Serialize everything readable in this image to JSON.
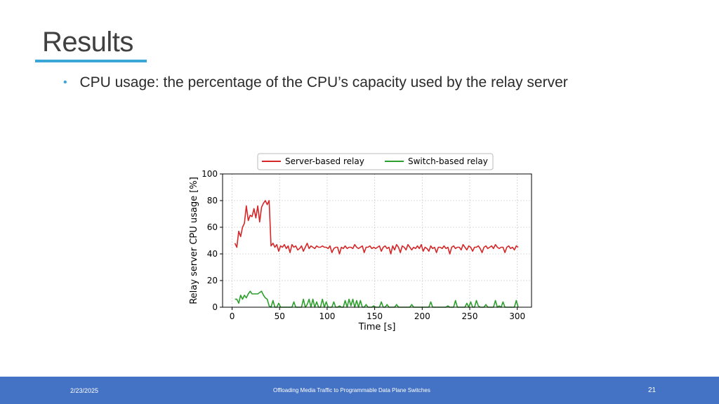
{
  "slide": {
    "title": "Results",
    "bullet": "CPU usage: the percentage of the CPU’s capacity used by the relay server",
    "accent_color": "#3aa6d8"
  },
  "footer": {
    "date": "2/23/2025",
    "center": "Offloading Media Traffic to Programmable Data Plane Switches",
    "page": "21",
    "background_color": "#4472c4"
  },
  "chart_data": {
    "type": "line",
    "title": "",
    "xlabel": "Time [s]",
    "ylabel": "Relay server CPU usage [%]",
    "xlim": [
      -10,
      315
    ],
    "ylim": [
      0,
      100
    ],
    "x_ticks": [
      0,
      50,
      100,
      150,
      200,
      250,
      300
    ],
    "y_ticks": [
      0,
      20,
      40,
      60,
      80,
      100
    ],
    "grid": true,
    "legend": "top",
    "series": [
      {
        "name": "Server-based relay",
        "color": "#d62728",
        "points": [
          [
            3,
            48
          ],
          [
            5,
            45
          ],
          [
            7,
            57
          ],
          [
            9,
            53
          ],
          [
            11,
            60
          ],
          [
            13,
            63
          ],
          [
            15,
            76
          ],
          [
            17,
            65
          ],
          [
            19,
            69
          ],
          [
            21,
            68
          ],
          [
            23,
            74
          ],
          [
            25,
            67
          ],
          [
            27,
            76
          ],
          [
            29,
            64
          ],
          [
            31,
            75
          ],
          [
            33,
            78
          ],
          [
            35,
            80
          ],
          [
            37,
            77
          ],
          [
            39,
            80
          ],
          [
            41,
            46
          ],
          [
            43,
            48
          ],
          [
            45,
            45
          ],
          [
            47,
            47
          ],
          [
            49,
            42
          ],
          [
            51,
            46
          ],
          [
            53,
            45
          ],
          [
            55,
            47
          ],
          [
            57,
            44
          ],
          [
            59,
            46
          ],
          [
            61,
            41
          ],
          [
            63,
            47
          ],
          [
            65,
            45
          ],
          [
            67,
            46
          ],
          [
            69,
            43
          ],
          [
            71,
            44
          ],
          [
            73,
            46
          ],
          [
            75,
            42
          ],
          [
            77,
            45
          ],
          [
            79,
            48
          ],
          [
            81,
            44
          ],
          [
            83,
            46
          ],
          [
            85,
            45
          ],
          [
            87,
            44
          ],
          [
            89,
            46
          ],
          [
            91,
            45
          ],
          [
            93,
            45
          ],
          [
            95,
            46
          ],
          [
            97,
            45
          ],
          [
            99,
            45
          ],
          [
            101,
            44
          ],
          [
            103,
            46
          ],
          [
            105,
            41
          ],
          [
            107,
            44
          ],
          [
            109,
            45
          ],
          [
            111,
            45
          ],
          [
            113,
            40
          ],
          [
            115,
            45
          ],
          [
            117,
            44
          ],
          [
            119,
            46
          ],
          [
            121,
            44
          ],
          [
            123,
            45
          ],
          [
            125,
            45
          ],
          [
            127,
            44
          ],
          [
            129,
            47
          ],
          [
            131,
            45
          ],
          [
            133,
            44
          ],
          [
            135,
            45
          ],
          [
            137,
            46
          ],
          [
            139,
            41
          ],
          [
            141,
            45
          ],
          [
            143,
            45
          ],
          [
            145,
            46
          ],
          [
            147,
            44
          ],
          [
            149,
            45
          ],
          [
            151,
            44
          ],
          [
            153,
            45
          ],
          [
            155,
            46
          ],
          [
            157,
            42
          ],
          [
            159,
            45
          ],
          [
            161,
            46
          ],
          [
            163,
            44
          ],
          [
            165,
            45
          ],
          [
            167,
            40
          ],
          [
            169,
            46
          ],
          [
            171,
            43
          ],
          [
            173,
            47
          ],
          [
            175,
            45
          ],
          [
            177,
            41
          ],
          [
            179,
            46
          ],
          [
            181,
            45
          ],
          [
            183,
            43
          ],
          [
            185,
            47
          ],
          [
            187,
            45
          ],
          [
            189,
            43
          ],
          [
            191,
            45
          ],
          [
            193,
            44
          ],
          [
            195,
            46
          ],
          [
            197,
            44
          ],
          [
            199,
            47
          ],
          [
            201,
            42
          ],
          [
            203,
            45
          ],
          [
            205,
            44
          ],
          [
            207,
            42
          ],
          [
            209,
            46
          ],
          [
            211,
            44
          ],
          [
            213,
            45
          ],
          [
            215,
            41
          ],
          [
            217,
            45
          ],
          [
            219,
            45
          ],
          [
            221,
            44
          ],
          [
            223,
            46
          ],
          [
            225,
            44
          ],
          [
            227,
            45
          ],
          [
            229,
            40
          ],
          [
            231,
            45
          ],
          [
            233,
            46
          ],
          [
            235,
            44
          ],
          [
            237,
            45
          ],
          [
            239,
            45
          ],
          [
            241,
            43
          ],
          [
            243,
            47
          ],
          [
            245,
            45
          ],
          [
            247,
            43
          ],
          [
            249,
            46
          ],
          [
            251,
            45
          ],
          [
            253,
            42
          ],
          [
            255,
            45
          ],
          [
            257,
            45
          ],
          [
            259,
            46
          ],
          [
            261,
            44
          ],
          [
            263,
            41
          ],
          [
            265,
            45
          ],
          [
            267,
            46
          ],
          [
            269,
            44
          ],
          [
            271,
            45
          ],
          [
            273,
            46
          ],
          [
            275,
            44
          ],
          [
            277,
            47
          ],
          [
            279,
            45
          ],
          [
            281,
            44
          ],
          [
            283,
            45
          ],
          [
            285,
            45
          ],
          [
            287,
            41
          ],
          [
            289,
            45
          ],
          [
            291,
            46
          ],
          [
            293,
            44
          ],
          [
            295,
            45
          ],
          [
            297,
            43
          ],
          [
            299,
            46
          ],
          [
            301,
            45
          ]
        ]
      },
      {
        "name": "Switch-based relay",
        "color": "#2ca02c",
        "points": [
          [
            3,
            6
          ],
          [
            5,
            6
          ],
          [
            7,
            3
          ],
          [
            9,
            9
          ],
          [
            11,
            6
          ],
          [
            13,
            9
          ],
          [
            15,
            7
          ],
          [
            17,
            10
          ],
          [
            19,
            12
          ],
          [
            21,
            10
          ],
          [
            23,
            10
          ],
          [
            25,
            10
          ],
          [
            27,
            10
          ],
          [
            29,
            11
          ],
          [
            31,
            12
          ],
          [
            33,
            9
          ],
          [
            35,
            7
          ],
          [
            37,
            6
          ],
          [
            39,
            1
          ],
          [
            41,
            0
          ],
          [
            43,
            5
          ],
          [
            45,
            0
          ],
          [
            47,
            0
          ],
          [
            49,
            3
          ],
          [
            51,
            0
          ],
          [
            53,
            0
          ],
          [
            55,
            0
          ],
          [
            57,
            0
          ],
          [
            59,
            0
          ],
          [
            61,
            0
          ],
          [
            63,
            0
          ],
          [
            65,
            4
          ],
          [
            67,
            0
          ],
          [
            69,
            0
          ],
          [
            71,
            0
          ],
          [
            73,
            0
          ],
          [
            75,
            6
          ],
          [
            77,
            0
          ],
          [
            79,
            2
          ],
          [
            81,
            6
          ],
          [
            83,
            0
          ],
          [
            85,
            6
          ],
          [
            87,
            0
          ],
          [
            89,
            4
          ],
          [
            91,
            0
          ],
          [
            93,
            0
          ],
          [
            95,
            6
          ],
          [
            97,
            0
          ],
          [
            99,
            4
          ],
          [
            101,
            0
          ],
          [
            103,
            0
          ],
          [
            105,
            0
          ],
          [
            107,
            4
          ],
          [
            109,
            0
          ],
          [
            111,
            0
          ],
          [
            113,
            1
          ],
          [
            115,
            0
          ],
          [
            117,
            0
          ],
          [
            119,
            5
          ],
          [
            121,
            0
          ],
          [
            123,
            6
          ],
          [
            125,
            1
          ],
          [
            127,
            6
          ],
          [
            129,
            0
          ],
          [
            131,
            5
          ],
          [
            133,
            0
          ],
          [
            135,
            5
          ],
          [
            137,
            0
          ],
          [
            139,
            0
          ],
          [
            141,
            2
          ],
          [
            143,
            0
          ],
          [
            145,
            0
          ],
          [
            147,
            0
          ],
          [
            149,
            1
          ],
          [
            151,
            0
          ],
          [
            153,
            0
          ],
          [
            155,
            0
          ],
          [
            157,
            4
          ],
          [
            159,
            0
          ],
          [
            161,
            0
          ],
          [
            163,
            2
          ],
          [
            165,
            0
          ],
          [
            167,
            0
          ],
          [
            169,
            0
          ],
          [
            171,
            0
          ],
          [
            173,
            2
          ],
          [
            175,
            0
          ],
          [
            177,
            0
          ],
          [
            179,
            0
          ],
          [
            181,
            0
          ],
          [
            183,
            0
          ],
          [
            185,
            0
          ],
          [
            187,
            0
          ],
          [
            189,
            2
          ],
          [
            191,
            0
          ],
          [
            193,
            0
          ],
          [
            195,
            0
          ],
          [
            197,
            0
          ],
          [
            199,
            0
          ],
          [
            201,
            0
          ],
          [
            203,
            0
          ],
          [
            205,
            0
          ],
          [
            207,
            0
          ],
          [
            209,
            4
          ],
          [
            211,
            0
          ],
          [
            213,
            0
          ],
          [
            215,
            0
          ],
          [
            217,
            0
          ],
          [
            219,
            0
          ],
          [
            221,
            0
          ],
          [
            223,
            0
          ],
          [
            225,
            0
          ],
          [
            227,
            1
          ],
          [
            229,
            0
          ],
          [
            231,
            0
          ],
          [
            233,
            0
          ],
          [
            235,
            5
          ],
          [
            237,
            0
          ],
          [
            239,
            0
          ],
          [
            241,
            0
          ],
          [
            243,
            0
          ],
          [
            245,
            0
          ],
          [
            247,
            3
          ],
          [
            249,
            0
          ],
          [
            251,
            4
          ],
          [
            253,
            0
          ],
          [
            255,
            0
          ],
          [
            257,
            5
          ],
          [
            259,
            1
          ],
          [
            261,
            0
          ],
          [
            263,
            0
          ],
          [
            265,
            0
          ],
          [
            267,
            2
          ],
          [
            269,
            0
          ],
          [
            271,
            0
          ],
          [
            273,
            0
          ],
          [
            275,
            0
          ],
          [
            277,
            5
          ],
          [
            279,
            0
          ],
          [
            281,
            1
          ],
          [
            283,
            0
          ],
          [
            285,
            4
          ],
          [
            287,
            0
          ],
          [
            289,
            0
          ],
          [
            291,
            0
          ],
          [
            293,
            0
          ],
          [
            295,
            0
          ],
          [
            297,
            0
          ],
          [
            299,
            5
          ],
          [
            301,
            0
          ]
        ]
      }
    ]
  }
}
